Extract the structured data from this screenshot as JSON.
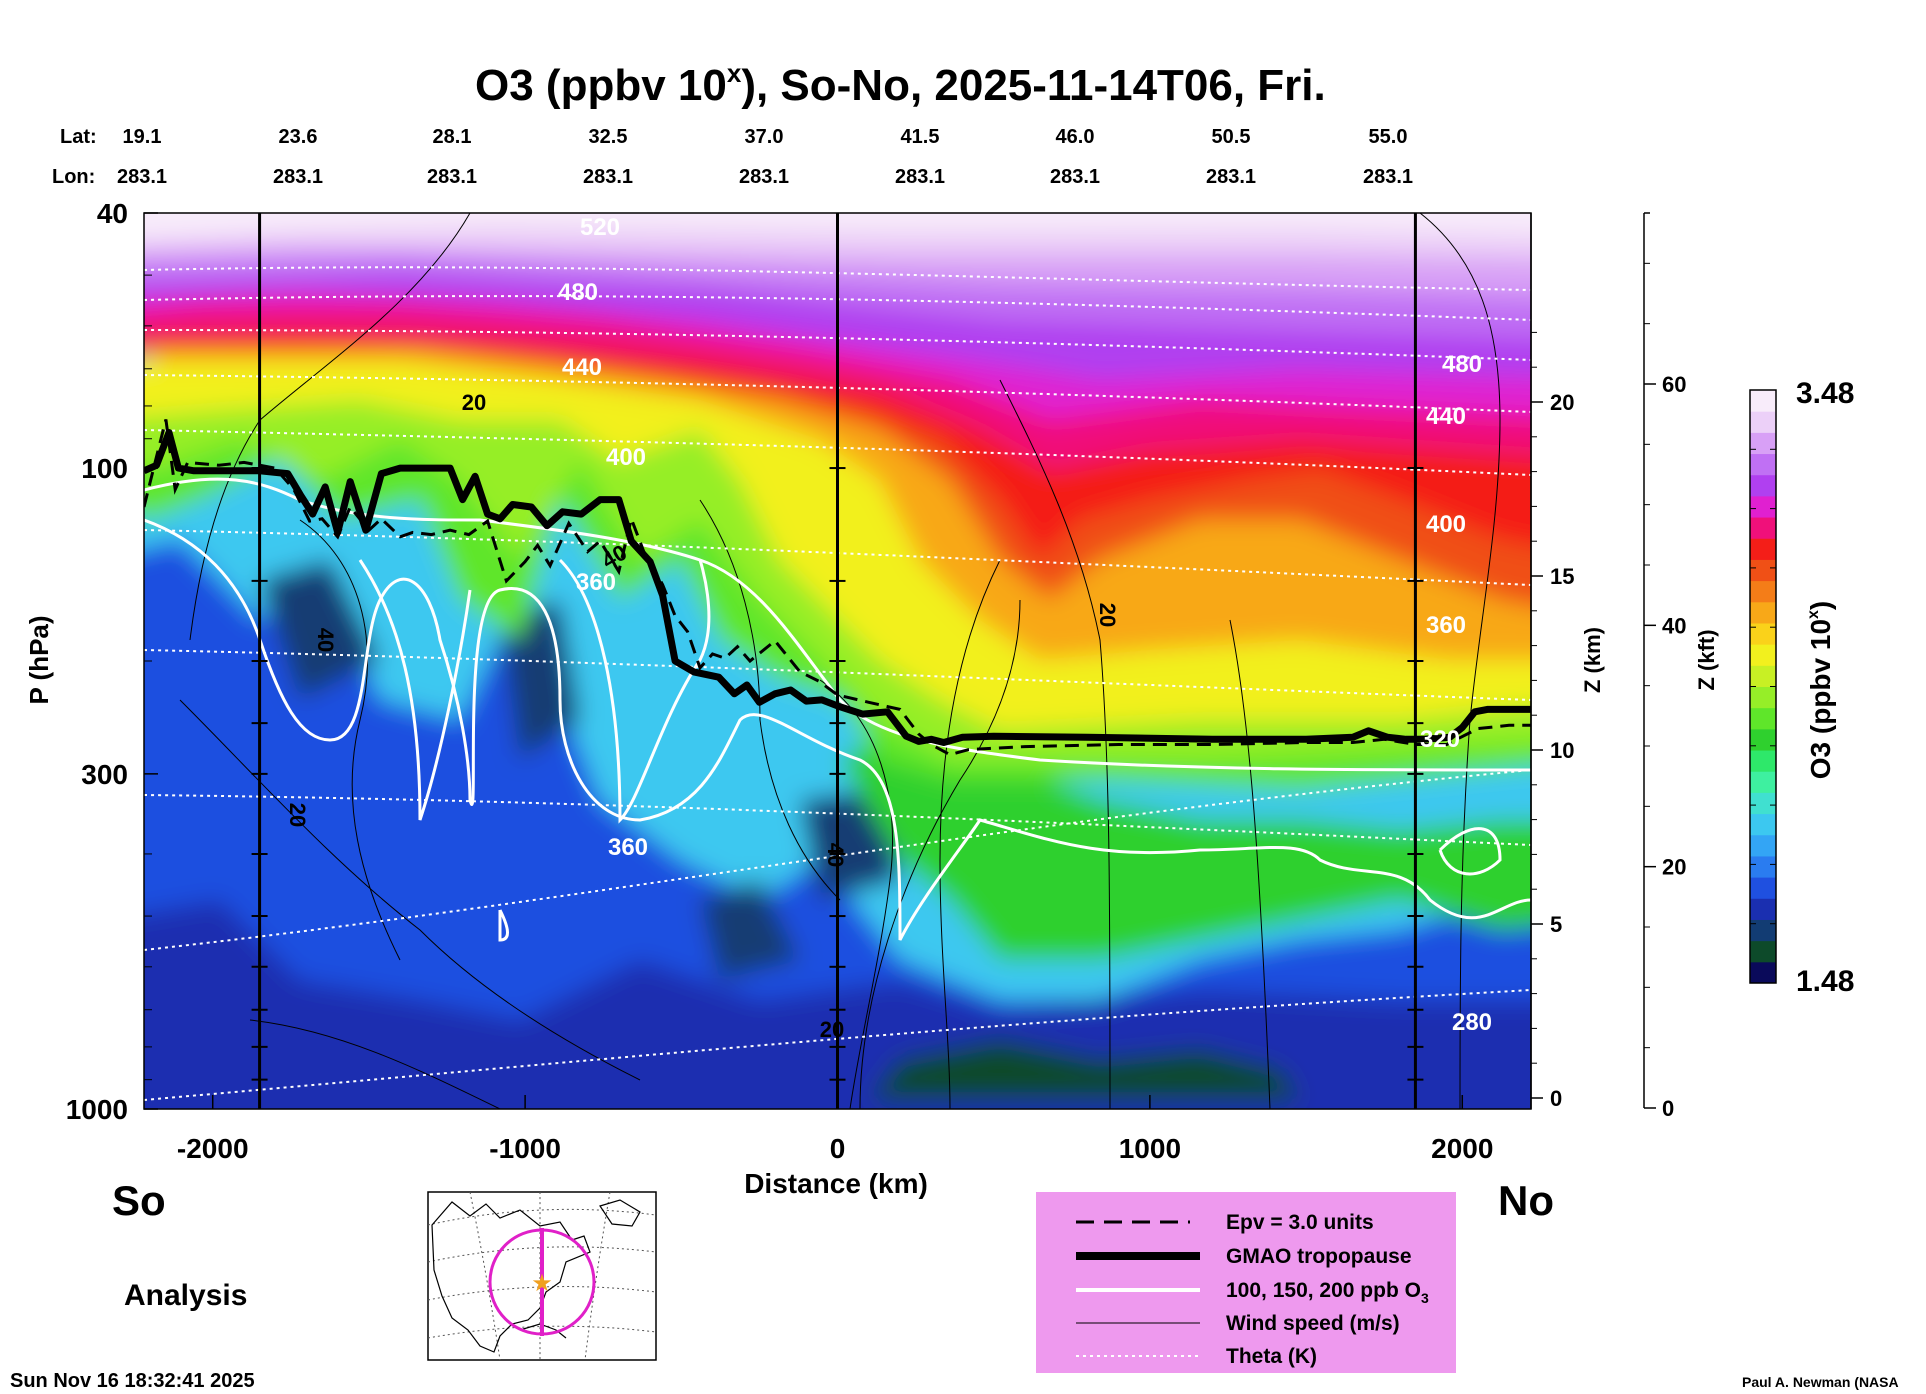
{
  "title_main": "O3 (ppbv 10",
  "title_sup": "x",
  "title_rest": "), So-No, 2025-11-14T06, Fri.",
  "lat_label": "Lat:",
  "lon_label": "Lon:",
  "lats": [
    "19.1",
    "23.6",
    "28.1",
    "32.5",
    "37.0",
    "41.5",
    "46.0",
    "50.5",
    "55.0"
  ],
  "lons": [
    "283.1",
    "283.1",
    "283.1",
    "283.1",
    "283.1",
    "283.1",
    "283.1",
    "283.1",
    "283.1"
  ],
  "left_end": "So",
  "right_end": "No",
  "analysis_label": "Analysis",
  "timestamp": "Sun Nov 16 18:32:41 2025",
  "credit": "Paul A. Newman (NASA",
  "colorbar": {
    "label": "O3 (ppbv 10",
    "label_sup": "x",
    "label_end": ")",
    "max_label": "3.48",
    "min_label": "1.48",
    "colors": [
      "#0a0a5a",
      "#0d4a2a",
      "#123c73",
      "#1a2fb0",
      "#1f50e0",
      "#2a7cf0",
      "#33a5f5",
      "#3cc8f0",
      "#40e0d0",
      "#3ef0a0",
      "#2ee86a",
      "#2fd02e",
      "#5fe62a",
      "#96ee28",
      "#c8f024",
      "#f2f01e",
      "#fad21a",
      "#f8a818",
      "#f47d18",
      "#f05016",
      "#f41e18",
      "#f0107a",
      "#e020d0",
      "#b040f0",
      "#c070f4",
      "#d8a0f6",
      "#ecd0f8",
      "#f8ecfa"
    ]
  },
  "chart_data": {
    "type": "heatmap",
    "title": "O3 (ppbv 10^x), So-No, 2025-11-14T06, Fri.",
    "xlabel": "Distance (km)",
    "ylabel": "P (hPa)",
    "z_km_label": "Z (km)",
    "z_kft_label": "Z (kft)",
    "xlim": [
      -2220,
      2220
    ],
    "ylim_hpa": [
      1000,
      40
    ],
    "x_ticks": [
      -2000,
      -1000,
      0,
      1000,
      2000
    ],
    "x_tick_labels": [
      "-2000",
      "-1000",
      "0",
      "1000",
      "2000"
    ],
    "p_ticks": [
      40,
      100,
      300,
      1000
    ],
    "p_tick_labels": [
      "40",
      "100",
      "300",
      "1000"
    ],
    "z_km_ticks": [
      0,
      5,
      10,
      15,
      20
    ],
    "z_km_tick_labels": [
      "0",
      "5",
      "10",
      "15",
      "20"
    ],
    "z_kft_ticks": [
      0,
      20,
      40,
      60
    ],
    "z_kft_tick_labels": [
      "0",
      "20",
      "40",
      "60"
    ],
    "colorbar_range": [
      1.48,
      3.48
    ],
    "tropopause_hpa": {
      "x": [
        -2220,
        -2180,
        -2140,
        -2110,
        -2060,
        -1980,
        -1900,
        -1850,
        -1760,
        -1720,
        -1680,
        -1640,
        -1600,
        -1560,
        -1510,
        -1460,
        -1400,
        -1320,
        -1240,
        -1200,
        -1160,
        -1120,
        -1080,
        -1040,
        -980,
        -930,
        -880,
        -820,
        -760,
        -700,
        -660,
        -600,
        -560,
        -520,
        -460,
        -420,
        -380,
        -330,
        -290,
        -250,
        -200,
        -150,
        -100,
        -50,
        0,
        80,
        160,
        220,
        260,
        300,
        340,
        400,
        500,
        800,
        1200,
        1500,
        1650,
        1700,
        1760,
        1820,
        1880,
        1960,
        2000,
        2040,
        2080,
        2220
      ],
      "y": [
        101,
        99,
        88,
        100,
        101,
        101,
        101,
        101,
        102,
        110,
        118,
        107,
        126,
        105,
        125,
        102,
        100,
        100,
        100,
        112,
        103,
        118,
        120,
        114,
        115,
        123,
        117,
        118,
        112,
        112,
        130,
        140,
        158,
        200,
        208,
        210,
        212,
        225,
        218,
        232,
        225,
        222,
        231,
        230,
        235,
        242,
        240,
        262,
        267,
        265,
        268,
        263,
        262,
        263,
        265,
        265,
        263,
        257,
        263,
        265,
        265,
        263,
        254,
        240,
        238,
        238
      ]
    },
    "epv_3pvu_hpa": {
      "x": [
        -2220,
        -2180,
        -2150,
        -2120,
        -2080,
        -1980,
        -1900,
        -1800,
        -1740,
        -1690,
        -1650,
        -1600,
        -1560,
        -1500,
        -1460,
        -1400,
        -1360,
        -1300,
        -1240,
        -1180,
        -1120,
        -1060,
        -1000,
        -960,
        -920,
        -860,
        -800,
        -760,
        -700,
        -660,
        -620,
        -560,
        -520,
        -480,
        -440,
        -400,
        -360,
        -320,
        -280,
        -200,
        -120,
        -60,
        0,
        100,
        200,
        260,
        300,
        360,
        420,
        600,
        900,
        1200,
        1500,
        1650,
        1750,
        1850,
        1950,
        2050,
        2150,
        2220
      ],
      "y": [
        115,
        96,
        84,
        108,
        98,
        99,
        98,
        100,
        108,
        121,
        120,
        128,
        115,
        125,
        120,
        128,
        126,
        127,
        125,
        127,
        121,
        150,
        140,
        132,
        142,
        122,
        135,
        130,
        145,
        120,
        135,
        152,
        170,
        180,
        205,
        195,
        198,
        190,
        200,
        186,
        208,
        215,
        226,
        232,
        238,
        260,
        270,
        280,
        275,
        272,
        270,
        270,
        268,
        268,
        265,
        270,
        270,
        255,
        252,
        252
      ]
    },
    "theta_labels": [
      "520",
      "480",
      "440",
      "400",
      "360",
      "320",
      "280"
    ],
    "wind_labels": [
      "20",
      "40"
    ],
    "legend": [
      {
        "label": "Epv = 3.0 units",
        "style": "dashed-black"
      },
      {
        "label": "GMAO tropopause",
        "style": "thick-black"
      },
      {
        "label": "100, 150, 200 ppb O",
        "sub": "3",
        "style": "white"
      },
      {
        "label": "Wind speed (m/s)",
        "style": "thin-black"
      },
      {
        "label": "Theta (K)",
        "style": "dotted-white"
      }
    ],
    "vertical_markers_km": [
      -1850,
      0,
      1850
    ]
  }
}
